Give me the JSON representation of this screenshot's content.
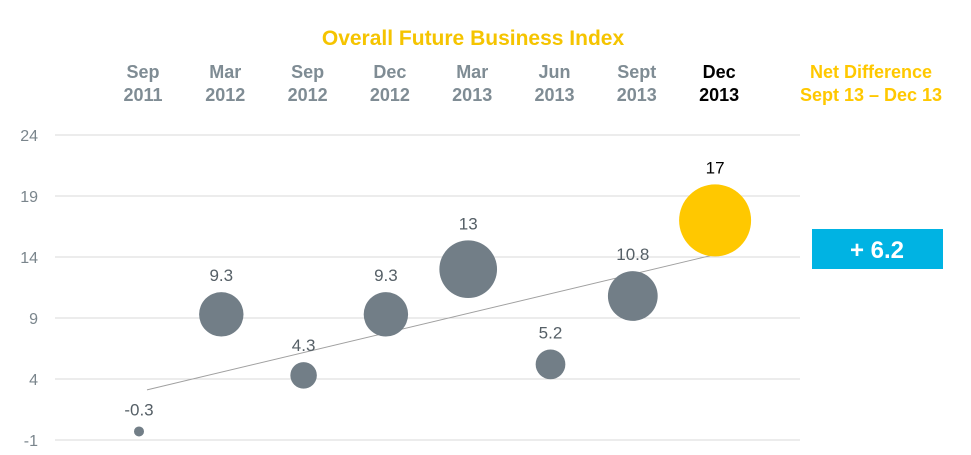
{
  "chart_data": {
    "type": "scatter",
    "title": "Overall Future Business Index",
    "ylim": [
      -1,
      24
    ],
    "y_ticks": [
      24,
      19,
      14,
      9,
      4,
      -1
    ],
    "grid": true,
    "categories": [
      {
        "line1": "Sep",
        "line2": "2011"
      },
      {
        "line1": "Mar",
        "line2": "2012"
      },
      {
        "line1": "Sep",
        "line2": "2012"
      },
      {
        "line1": "Dec",
        "line2": "2012"
      },
      {
        "line1": "Mar",
        "line2": "2013"
      },
      {
        "line1": "Jun",
        "line2": "2013"
      },
      {
        "line1": "Sept",
        "line2": "2013"
      },
      {
        "line1": "Dec",
        "line2": "2013"
      }
    ],
    "values": [
      -0.3,
      9.3,
      4.3,
      9.3,
      13,
      5.2,
      10.8,
      17
    ],
    "value_labels": [
      "-0.3",
      "9.3",
      "4.3",
      "9.3",
      "13",
      "5.2",
      "10.8",
      "17"
    ],
    "trendline": true,
    "highlight_index": 7,
    "net_difference": {
      "line1": "Net Difference",
      "line2": "Sept 13 – Dec 13",
      "value": "+ 6.2"
    },
    "colors": {
      "title": "#f5c400",
      "bubble": "#727e87",
      "highlight": "#ffc800",
      "period_text": "#7f8c94",
      "period_highlight": "#000000",
      "tick_text": "#7a858c",
      "value_text": "#555f66",
      "value_highlight": "#000000",
      "net_text": "#ffc800",
      "badge_bg": "#00b3e3",
      "badge_text": "#ffffff",
      "grid": "#d9d9d9",
      "trend": "#a0a0a0"
    }
  }
}
